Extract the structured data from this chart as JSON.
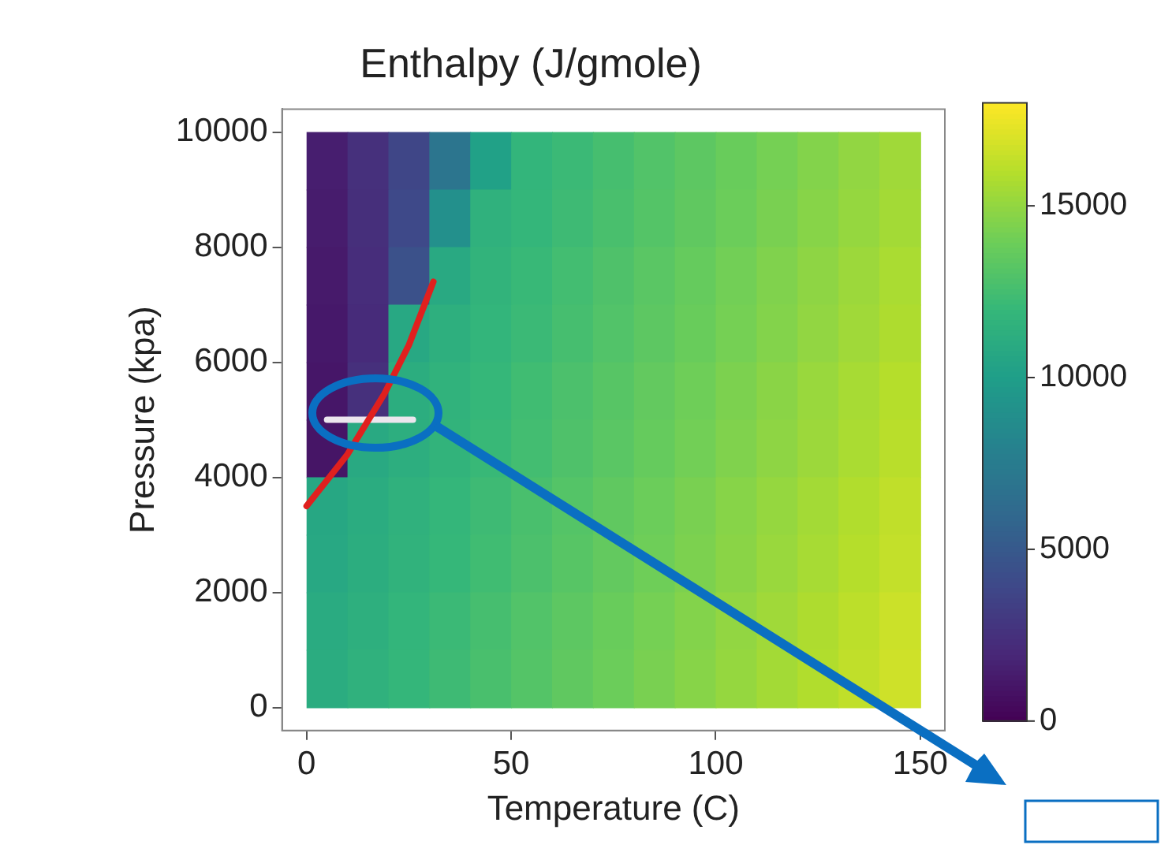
{
  "chart_data": {
    "type": "heatmap",
    "title": "Enthalpy (J/gmole)",
    "xlabel": "Temperature (C)",
    "ylabel": "Pressure (kpa)",
    "x": [
      5,
      15,
      25,
      35,
      45,
      55,
      65,
      75,
      85,
      95,
      105,
      115,
      125,
      135,
      145
    ],
    "y": [
      9500,
      8500,
      7500,
      6500,
      5500,
      4500,
      3500,
      2500,
      1500,
      500
    ],
    "cells": [
      [
        1500,
        2500,
        3800,
        7000,
        10200,
        11800,
        12200,
        12600,
        13000,
        13400,
        13800,
        14200,
        14600,
        15000,
        15400
      ],
      [
        1400,
        2400,
        4000,
        9000,
        11500,
        11900,
        12300,
        12700,
        13100,
        13500,
        13900,
        14300,
        14700,
        15100,
        15500
      ],
      [
        1300,
        2300,
        4500,
        10900,
        11700,
        12100,
        12500,
        12900,
        13300,
        13700,
        14100,
        14500,
        14900,
        15300,
        15700
      ],
      [
        1200,
        2200,
        10800,
        11400,
        11800,
        12200,
        12600,
        13000,
        13400,
        13800,
        14200,
        14600,
        15000,
        15400,
        15800
      ],
      [
        1100,
        2500,
        11200,
        11600,
        12000,
        12400,
        12800,
        13200,
        13600,
        14000,
        14400,
        14800,
        15200,
        15600,
        16000
      ],
      [
        1000,
        10900,
        11300,
        11700,
        12100,
        12500,
        12900,
        13300,
        13700,
        14100,
        14500,
        14900,
        15300,
        15700,
        16100
      ],
      [
        10700,
        11100,
        11500,
        11900,
        12300,
        12700,
        13100,
        13500,
        13900,
        14300,
        14700,
        15100,
        15500,
        15900,
        16300
      ],
      [
        10800,
        11200,
        11600,
        12000,
        12400,
        12800,
        13200,
        13600,
        14000,
        14400,
        14800,
        15200,
        15600,
        16000,
        16400
      ],
      [
        11000,
        11400,
        11800,
        12200,
        12600,
        13000,
        13400,
        13800,
        14200,
        14600,
        15000,
        15400,
        15800,
        16200,
        16600
      ],
      [
        11100,
        11500,
        11900,
        12300,
        12700,
        13100,
        13500,
        13900,
        14300,
        14700,
        15100,
        15500,
        15900,
        16300,
        16700
      ]
    ],
    "series": [
      {
        "type": "line",
        "color": "#e0201e",
        "x": [
          0,
          10,
          19,
          25,
          31
        ],
        "values": [
          3500,
          4400,
          5450,
          6300,
          7400
        ]
      },
      {
        "type": "line",
        "color": "#ece6ee",
        "x": [
          5,
          26
        ],
        "values": [
          5000,
          5000
        ]
      }
    ],
    "xlim": [
      -6,
      156
    ],
    "ylim": [
      -400,
      10400
    ],
    "xticks": [
      0,
      50,
      100,
      150
    ],
    "yticks": [
      0,
      2000,
      4000,
      6000,
      8000,
      10000
    ],
    "clim": [
      0,
      18000
    ],
    "cticks": [
      0,
      5000,
      10000,
      15000
    ],
    "grid": false,
    "legend": false
  }
}
